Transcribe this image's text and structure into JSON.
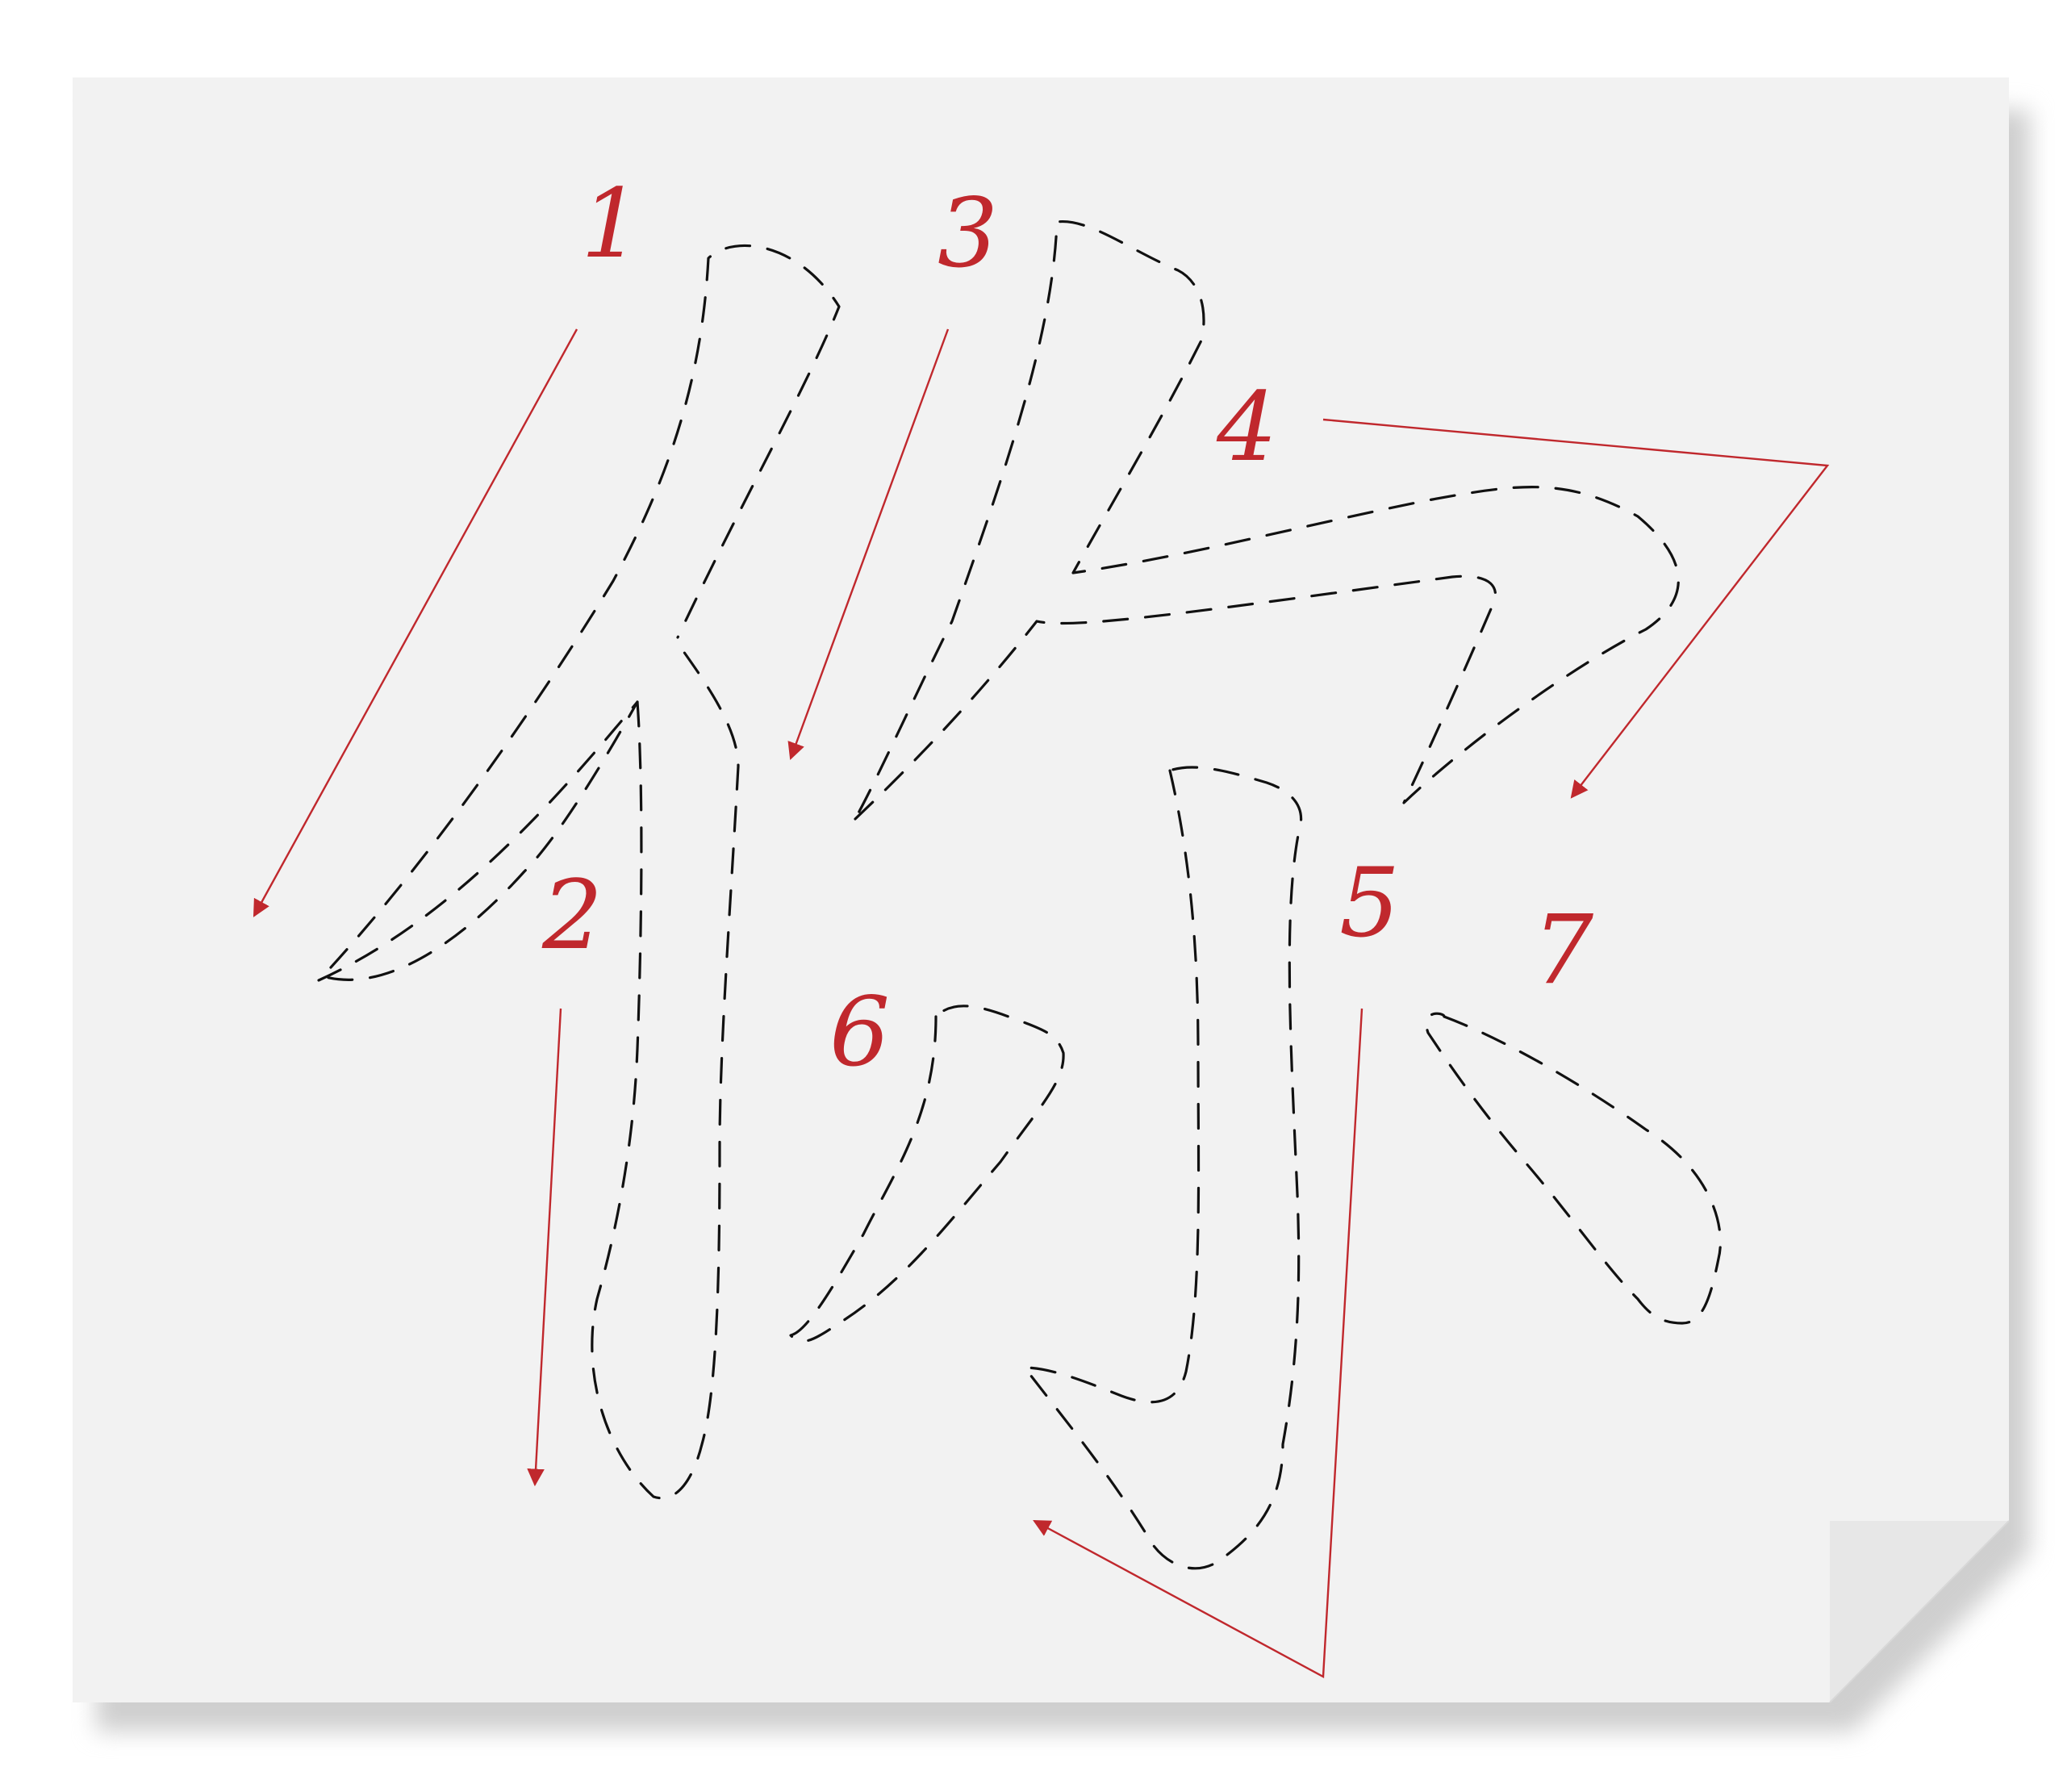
{
  "colors": {
    "page_background": "#ffffff",
    "sheet": "#f2f2f2",
    "sheet_fold": "#e7e7e7",
    "outline": "#111111",
    "accent": "#c0282d"
  },
  "strokes": [
    {
      "number": "1",
      "outline": "dashed",
      "arrow": "red-arrow"
    },
    {
      "number": "2",
      "outline": "dashed",
      "arrow": "red-arrow"
    },
    {
      "number": "3",
      "outline": "dashed",
      "arrow": "red-arrow"
    },
    {
      "number": "4",
      "outline": "dashed",
      "arrow": "red-arrow"
    },
    {
      "number": "5",
      "outline": "dashed",
      "arrow": "red-arrow"
    },
    {
      "number": "6",
      "outline": "dashed",
      "arrow": "none"
    },
    {
      "number": "7",
      "outline": "dashed",
      "arrow": "none"
    }
  ]
}
